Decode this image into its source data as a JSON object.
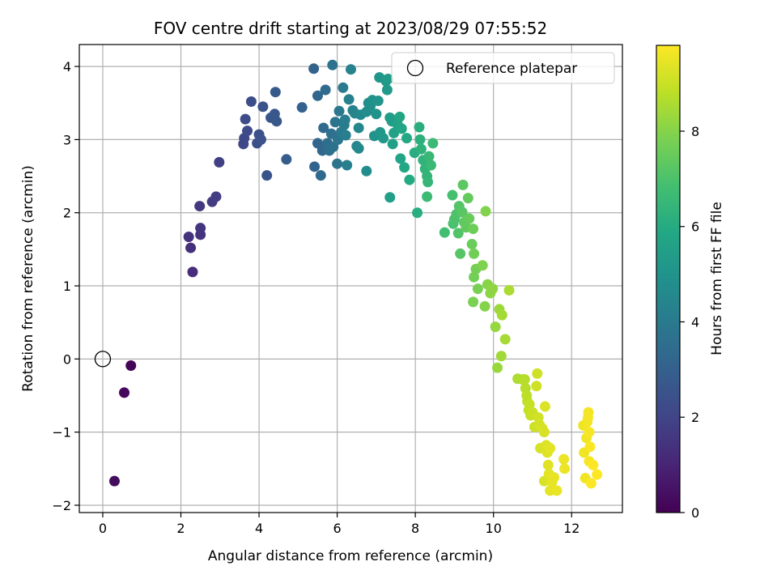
{
  "chart_data": {
    "type": "scatter",
    "title": "FOV centre drift starting at 2023/08/29 07:55:52",
    "xlabel": "Angular distance from reference (arcmin)",
    "ylabel": "Rotation from reference (arcmin)",
    "xlim": [
      -0.6,
      13.3
    ],
    "ylim": [
      -2.1,
      4.3
    ],
    "xticks": [
      0,
      2,
      4,
      6,
      8,
      10,
      12
    ],
    "yticks": [
      -2,
      -1,
      0,
      1,
      2,
      3,
      4
    ],
    "grid": true,
    "legend": {
      "placement": "top-right",
      "entries": [
        "Reference platepar"
      ]
    },
    "reference_point": {
      "x": 0,
      "y": 0
    },
    "colorbar": {
      "label": "Hours from first FF file",
      "colormap": "viridis",
      "range": [
        0,
        9.8
      ],
      "ticks": [
        0,
        2,
        4,
        6,
        8
      ]
    },
    "points": [
      {
        "x": 0.72,
        "y": -0.09,
        "t": 0.1
      },
      {
        "x": 0.55,
        "y": -0.46,
        "t": 0.2
      },
      {
        "x": 0.3,
        "y": -1.67,
        "t": 0.3
      },
      {
        "x": 2.3,
        "y": 1.19,
        "t": 1.3
      },
      {
        "x": 2.25,
        "y": 1.52,
        "t": 1.35
      },
      {
        "x": 2.2,
        "y": 1.67,
        "t": 1.4
      },
      {
        "x": 2.5,
        "y": 1.7,
        "t": 1.45
      },
      {
        "x": 2.5,
        "y": 1.79,
        "t": 1.5
      },
      {
        "x": 2.48,
        "y": 2.09,
        "t": 1.6
      },
      {
        "x": 2.8,
        "y": 2.15,
        "t": 1.7
      },
      {
        "x": 2.9,
        "y": 2.22,
        "t": 1.75
      },
      {
        "x": 2.98,
        "y": 2.69,
        "t": 1.85
      },
      {
        "x": 3.6,
        "y": 2.94,
        "t": 2.1
      },
      {
        "x": 3.62,
        "y": 3.02,
        "t": 2.15
      },
      {
        "x": 3.7,
        "y": 3.12,
        "t": 2.2
      },
      {
        "x": 3.65,
        "y": 3.28,
        "t": 2.25
      },
      {
        "x": 3.8,
        "y": 3.52,
        "t": 2.3
      },
      {
        "x": 3.95,
        "y": 2.95,
        "t": 2.35
      },
      {
        "x": 4.0,
        "y": 3.07,
        "t": 2.4
      },
      {
        "x": 4.05,
        "y": 3.0,
        "t": 2.45
      },
      {
        "x": 4.1,
        "y": 3.45,
        "t": 2.5
      },
      {
        "x": 4.2,
        "y": 2.51,
        "t": 2.55
      },
      {
        "x": 4.3,
        "y": 3.3,
        "t": 2.6
      },
      {
        "x": 4.4,
        "y": 3.35,
        "t": 2.65
      },
      {
        "x": 4.45,
        "y": 3.25,
        "t": 2.7
      },
      {
        "x": 4.42,
        "y": 3.65,
        "t": 2.75
      },
      {
        "x": 4.7,
        "y": 2.73,
        "t": 2.85
      },
      {
        "x": 5.1,
        "y": 3.44,
        "t": 3.0
      },
      {
        "x": 5.4,
        "y": 3.97,
        "t": 3.1
      },
      {
        "x": 5.42,
        "y": 2.63,
        "t": 3.15
      },
      {
        "x": 5.5,
        "y": 2.95,
        "t": 3.2
      },
      {
        "x": 5.5,
        "y": 3.6,
        "t": 3.25
      },
      {
        "x": 5.58,
        "y": 2.51,
        "t": 3.3
      },
      {
        "x": 5.62,
        "y": 2.85,
        "t": 3.35
      },
      {
        "x": 5.65,
        "y": 3.16,
        "t": 3.4
      },
      {
        "x": 5.7,
        "y": 3.68,
        "t": 3.45
      },
      {
        "x": 5.75,
        "y": 2.95,
        "t": 3.5
      },
      {
        "x": 5.8,
        "y": 2.85,
        "t": 3.55
      },
      {
        "x": 5.85,
        "y": 3.08,
        "t": 3.6
      },
      {
        "x": 5.88,
        "y": 4.02,
        "t": 3.65
      },
      {
        "x": 5.9,
        "y": 2.9,
        "t": 3.7
      },
      {
        "x": 5.95,
        "y": 3.24,
        "t": 3.75
      },
      {
        "x": 6.0,
        "y": 2.67,
        "t": 3.8
      },
      {
        "x": 6.02,
        "y": 3.0,
        "t": 3.85
      },
      {
        "x": 6.05,
        "y": 3.39,
        "t": 3.9
      },
      {
        "x": 6.1,
        "y": 3.1,
        "t": 3.95
      },
      {
        "x": 6.15,
        "y": 3.71,
        "t": 4.0
      },
      {
        "x": 6.18,
        "y": 3.2,
        "t": 4.05
      },
      {
        "x": 6.2,
        "y": 3.27,
        "t": 4.1
      },
      {
        "x": 6.22,
        "y": 3.06,
        "t": 4.15
      },
      {
        "x": 6.25,
        "y": 2.65,
        "t": 4.2
      },
      {
        "x": 6.3,
        "y": 3.55,
        "t": 4.25
      },
      {
        "x": 6.35,
        "y": 3.96,
        "t": 4.3
      },
      {
        "x": 6.4,
        "y": 3.4,
        "t": 4.35
      },
      {
        "x": 6.45,
        "y": 3.36,
        "t": 4.4
      },
      {
        "x": 6.5,
        "y": 2.91,
        "t": 4.45
      },
      {
        "x": 6.55,
        "y": 3.16,
        "t": 4.5
      },
      {
        "x": 6.55,
        "y": 2.88,
        "t": 4.55
      },
      {
        "x": 6.6,
        "y": 3.34,
        "t": 4.6
      },
      {
        "x": 6.75,
        "y": 3.38,
        "t": 4.7
      },
      {
        "x": 6.8,
        "y": 3.5,
        "t": 4.75
      },
      {
        "x": 6.75,
        "y": 2.57,
        "t": 4.8
      },
      {
        "x": 6.85,
        "y": 3.46,
        "t": 4.85
      },
      {
        "x": 6.9,
        "y": 3.54,
        "t": 4.9
      },
      {
        "x": 6.95,
        "y": 3.05,
        "t": 4.95
      },
      {
        "x": 7.0,
        "y": 3.35,
        "t": 5.0
      },
      {
        "x": 7.05,
        "y": 3.53,
        "t": 5.05
      },
      {
        "x": 7.08,
        "y": 3.85,
        "t": 5.1
      },
      {
        "x": 7.1,
        "y": 3.1,
        "t": 5.15
      },
      {
        "x": 7.18,
        "y": 3.02,
        "t": 5.2
      },
      {
        "x": 7.25,
        "y": 3.8,
        "t": 5.25
      },
      {
        "x": 7.28,
        "y": 3.68,
        "t": 5.3
      },
      {
        "x": 7.3,
        "y": 3.83,
        "t": 5.35
      },
      {
        "x": 7.35,
        "y": 3.3,
        "t": 5.4
      },
      {
        "x": 7.4,
        "y": 3.25,
        "t": 5.45
      },
      {
        "x": 7.35,
        "y": 2.21,
        "t": 5.5
      },
      {
        "x": 7.42,
        "y": 2.94,
        "t": 5.55
      },
      {
        "x": 7.45,
        "y": 3.09,
        "t": 5.6
      },
      {
        "x": 7.55,
        "y": 3.2,
        "t": 5.65
      },
      {
        "x": 7.6,
        "y": 3.31,
        "t": 5.7
      },
      {
        "x": 7.62,
        "y": 2.74,
        "t": 5.75
      },
      {
        "x": 7.65,
        "y": 3.15,
        "t": 5.8
      },
      {
        "x": 7.72,
        "y": 2.62,
        "t": 5.85
      },
      {
        "x": 7.78,
        "y": 3.02,
        "t": 5.9
      },
      {
        "x": 7.85,
        "y": 2.45,
        "t": 5.95
      },
      {
        "x": 7.98,
        "y": 2.82,
        "t": 6.05
      },
      {
        "x": 8.05,
        "y": 2.0,
        "t": 6.1
      },
      {
        "x": 8.1,
        "y": 3.17,
        "t": 6.15
      },
      {
        "x": 8.12,
        "y": 3.0,
        "t": 6.2
      },
      {
        "x": 8.15,
        "y": 2.87,
        "t": 6.25
      },
      {
        "x": 8.2,
        "y": 2.72,
        "t": 6.3
      },
      {
        "x": 8.25,
        "y": 2.6,
        "t": 6.35
      },
      {
        "x": 8.3,
        "y": 2.5,
        "t": 6.4
      },
      {
        "x": 8.32,
        "y": 2.42,
        "t": 6.45
      },
      {
        "x": 8.35,
        "y": 2.77,
        "t": 6.5
      },
      {
        "x": 8.4,
        "y": 2.65,
        "t": 6.55
      },
      {
        "x": 8.45,
        "y": 2.95,
        "t": 6.6
      },
      {
        "x": 8.3,
        "y": 2.22,
        "t": 6.65
      },
      {
        "x": 8.75,
        "y": 1.73,
        "t": 6.8
      },
      {
        "x": 8.95,
        "y": 2.24,
        "t": 6.9
      },
      {
        "x": 8.97,
        "y": 1.85,
        "t": 6.95
      },
      {
        "x": 9.0,
        "y": 1.91,
        "t": 7.0
      },
      {
        "x": 9.05,
        "y": 1.98,
        "t": 7.05
      },
      {
        "x": 9.1,
        "y": 1.72,
        "t": 7.1
      },
      {
        "x": 9.12,
        "y": 2.09,
        "t": 7.15
      },
      {
        "x": 9.15,
        "y": 1.44,
        "t": 7.2
      },
      {
        "x": 9.2,
        "y": 2.01,
        "t": 7.25
      },
      {
        "x": 9.22,
        "y": 2.38,
        "t": 7.3
      },
      {
        "x": 9.25,
        "y": 1.87,
        "t": 7.35
      },
      {
        "x": 9.3,
        "y": 1.8,
        "t": 7.4
      },
      {
        "x": 9.35,
        "y": 2.2,
        "t": 7.45
      },
      {
        "x": 9.38,
        "y": 1.92,
        "t": 7.5
      },
      {
        "x": 9.45,
        "y": 1.57,
        "t": 7.55
      },
      {
        "x": 9.48,
        "y": 1.78,
        "t": 7.6
      },
      {
        "x": 9.5,
        "y": 1.44,
        "t": 7.65
      },
      {
        "x": 9.5,
        "y": 1.12,
        "t": 7.7
      },
      {
        "x": 9.55,
        "y": 1.23,
        "t": 7.75
      },
      {
        "x": 9.6,
        "y": 0.96,
        "t": 7.8
      },
      {
        "x": 9.48,
        "y": 0.78,
        "t": 7.85
      },
      {
        "x": 9.72,
        "y": 1.28,
        "t": 7.9
      },
      {
        "x": 9.8,
        "y": 2.02,
        "t": 7.95
      },
      {
        "x": 9.78,
        "y": 0.72,
        "t": 8.0
      },
      {
        "x": 9.85,
        "y": 1.02,
        "t": 8.05
      },
      {
        "x": 9.92,
        "y": 0.9,
        "t": 8.1
      },
      {
        "x": 9.98,
        "y": 0.96,
        "t": 8.15
      },
      {
        "x": 10.05,
        "y": 0.44,
        "t": 8.25
      },
      {
        "x": 10.1,
        "y": -0.12,
        "t": 8.3
      },
      {
        "x": 10.15,
        "y": 0.68,
        "t": 8.35
      },
      {
        "x": 10.2,
        "y": 0.04,
        "t": 8.4
      },
      {
        "x": 10.22,
        "y": 0.6,
        "t": 8.45
      },
      {
        "x": 10.3,
        "y": 0.27,
        "t": 8.5
      },
      {
        "x": 10.4,
        "y": 0.94,
        "t": 8.55
      },
      {
        "x": 10.62,
        "y": -0.27,
        "t": 8.6
      },
      {
        "x": 10.75,
        "y": -0.28,
        "t": 8.65
      },
      {
        "x": 10.8,
        "y": -0.28,
        "t": 8.7
      },
      {
        "x": 10.82,
        "y": -0.4,
        "t": 8.75
      },
      {
        "x": 10.85,
        "y": -0.5,
        "t": 8.8
      },
      {
        "x": 10.87,
        "y": -0.58,
        "t": 8.85
      },
      {
        "x": 10.9,
        "y": -0.7,
        "t": 8.9
      },
      {
        "x": 10.92,
        "y": -0.62,
        "t": 8.95
      },
      {
        "x": 10.95,
        "y": -0.77,
        "t": 9.0
      },
      {
        "x": 11.0,
        "y": -0.73,
        "t": 9.02
      },
      {
        "x": 11.05,
        "y": -0.93,
        "t": 9.05
      },
      {
        "x": 11.1,
        "y": -0.37,
        "t": 9.08
      },
      {
        "x": 11.12,
        "y": -0.2,
        "t": 9.1
      },
      {
        "x": 11.15,
        "y": -0.8,
        "t": 9.12
      },
      {
        "x": 11.18,
        "y": -0.9,
        "t": 9.15
      },
      {
        "x": 11.2,
        "y": -1.22,
        "t": 9.18
      },
      {
        "x": 11.25,
        "y": -0.95,
        "t": 9.2
      },
      {
        "x": 11.3,
        "y": -1.0,
        "t": 9.22
      },
      {
        "x": 11.3,
        "y": -1.67,
        "t": 9.25
      },
      {
        "x": 11.32,
        "y": -0.65,
        "t": 9.28
      },
      {
        "x": 11.35,
        "y": -1.18,
        "t": 9.3
      },
      {
        "x": 11.38,
        "y": -1.28,
        "t": 9.32
      },
      {
        "x": 11.4,
        "y": -1.45,
        "t": 9.35
      },
      {
        "x": 11.42,
        "y": -1.57,
        "t": 9.38
      },
      {
        "x": 11.45,
        "y": -1.22,
        "t": 9.4
      },
      {
        "x": 11.45,
        "y": -1.8,
        "t": 9.42
      },
      {
        "x": 11.5,
        "y": -1.68,
        "t": 9.45
      },
      {
        "x": 11.55,
        "y": -1.62,
        "t": 9.48
      },
      {
        "x": 11.62,
        "y": -1.8,
        "t": 9.5
      },
      {
        "x": 11.8,
        "y": -1.37,
        "t": 9.52
      },
      {
        "x": 11.82,
        "y": -1.5,
        "t": 9.54
      },
      {
        "x": 12.3,
        "y": -0.91,
        "t": 9.56
      },
      {
        "x": 12.32,
        "y": -1.28,
        "t": 9.58
      },
      {
        "x": 12.35,
        "y": -1.63,
        "t": 9.6
      },
      {
        "x": 12.38,
        "y": -1.08,
        "t": 9.62
      },
      {
        "x": 12.4,
        "y": -0.86,
        "t": 9.64
      },
      {
        "x": 12.42,
        "y": -0.8,
        "t": 9.66
      },
      {
        "x": 12.43,
        "y": -0.73,
        "t": 9.68
      },
      {
        "x": 12.45,
        "y": -1.0,
        "t": 9.7
      },
      {
        "x": 12.45,
        "y": -1.4,
        "t": 9.72
      },
      {
        "x": 12.47,
        "y": -1.2,
        "t": 9.74
      },
      {
        "x": 12.5,
        "y": -1.7,
        "t": 9.76
      },
      {
        "x": 12.55,
        "y": -1.45,
        "t": 9.78
      },
      {
        "x": 12.65,
        "y": -1.58,
        "t": 9.8
      }
    ]
  }
}
